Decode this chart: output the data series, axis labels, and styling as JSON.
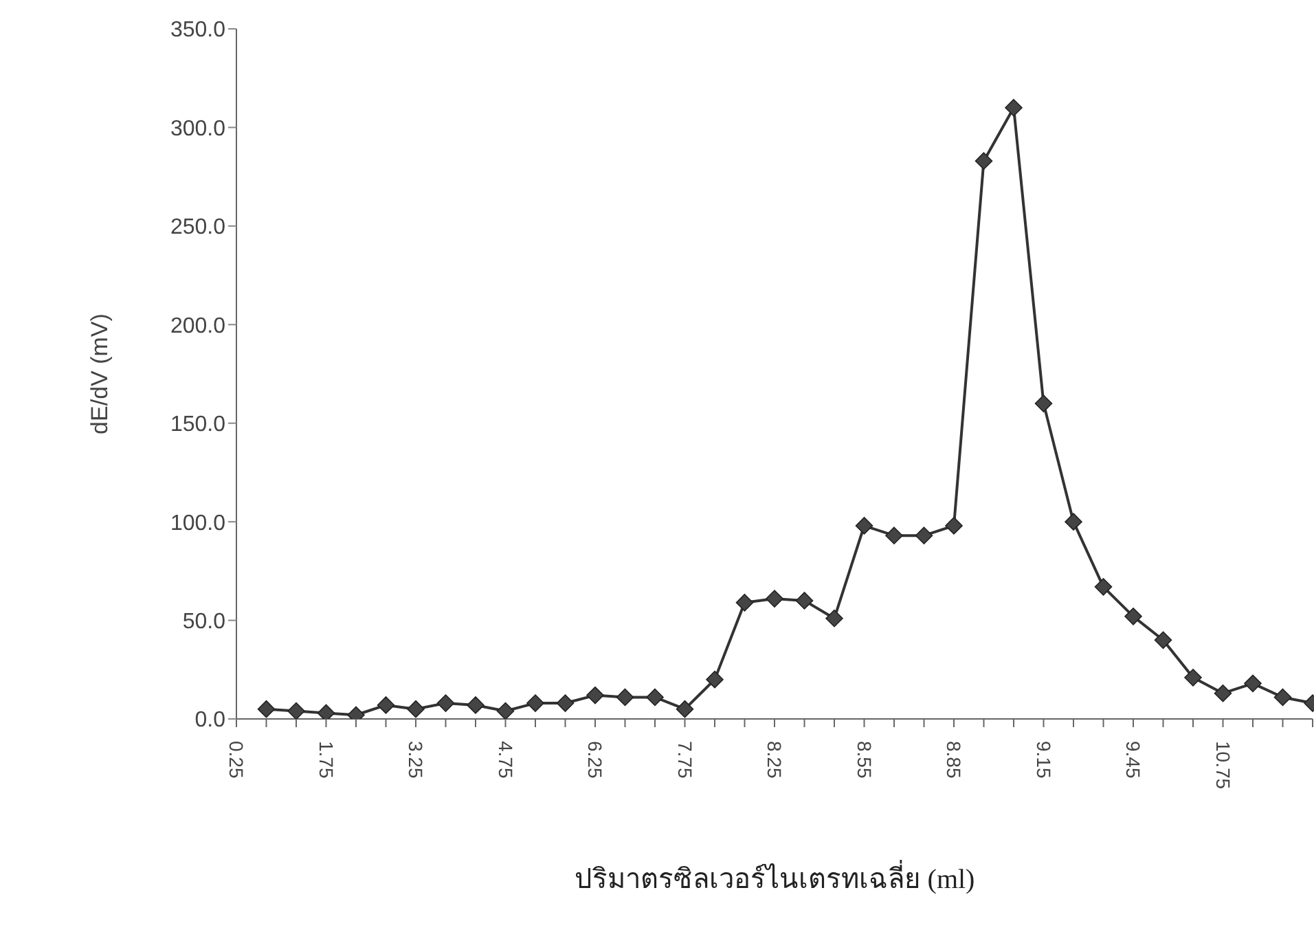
{
  "chart_data": {
    "type": "line",
    "xlabel": "ปริมาตรซิลเวอร์ไนเตรทเฉลี่ย (ml)",
    "ylabel": "dE/dV (mV)",
    "categories": [
      "0.25",
      null,
      null,
      "1.75",
      null,
      null,
      "3.25",
      null,
      null,
      "4.75",
      null,
      null,
      "6.25",
      null,
      null,
      "7.75",
      null,
      null,
      "8.25",
      null,
      null,
      "8.55",
      null,
      null,
      "8.85",
      null,
      null,
      "9.15",
      null,
      null,
      "9.45",
      null,
      null,
      "10.75",
      null,
      null,
      null
    ],
    "series": [
      {
        "color": "#333333",
        "values": [
          null,
          5,
          4,
          3,
          2,
          7,
          5,
          8,
          7,
          4,
          8,
          8,
          12,
          11,
          11,
          5,
          20,
          59,
          61,
          60,
          51,
          98,
          93,
          93,
          98,
          283,
          310,
          160,
          100,
          67,
          52,
          40,
          21,
          13,
          18,
          11,
          8
        ]
      }
    ],
    "ylim": [
      0,
      350
    ],
    "yticks": [
      {
        "value": 0,
        "label": "0.0"
      },
      {
        "value": 50,
        "label": "50.0"
      },
      {
        "value": 100,
        "label": "100.0"
      },
      {
        "value": 150,
        "label": "150.0"
      },
      {
        "value": 200,
        "label": "200.0"
      },
      {
        "value": 250,
        "label": "250.0"
      },
      {
        "value": 300,
        "label": "300.0"
      },
      {
        "value": 350,
        "label": "350.0"
      }
    ],
    "marker": "diamond",
    "line_style": "solid"
  }
}
